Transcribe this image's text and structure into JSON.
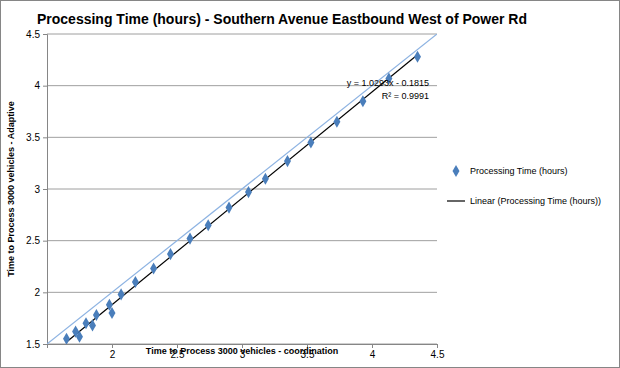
{
  "chart_data": {
    "type": "scatter",
    "title": "Processing Time (hours) - Southern Avenue Eastbound West of Power Rd",
    "x_label": "Time to Process 3000 vehicles - coordination",
    "y_label": "Time to Process 3000 vehicles - Adaptive",
    "xlim": [
      1.5,
      4.5
    ],
    "ylim": [
      1.5,
      4.5
    ],
    "xticks": [
      1.5,
      2,
      2.5,
      3,
      3.5,
      4,
      4.5
    ],
    "yticks": [
      1.5,
      2,
      2.5,
      3,
      3.5,
      4,
      4.5
    ],
    "grid": "y",
    "legend": "right",
    "series": [
      {
        "name": "Processing Time (hours)",
        "type": "scatter",
        "marker": "diamond",
        "color": "#4a7ebb",
        "x": [
          1.65,
          1.72,
          1.75,
          1.8,
          1.85,
          1.88,
          1.98,
          2.0,
          2.07,
          2.18,
          2.32,
          2.45,
          2.6,
          2.74,
          2.9,
          3.05,
          3.18,
          3.35,
          3.53,
          3.73,
          3.93,
          4.13,
          4.35
        ],
        "values": [
          1.55,
          1.62,
          1.57,
          1.7,
          1.68,
          1.78,
          1.88,
          1.8,
          1.98,
          2.1,
          2.23,
          2.37,
          2.52,
          2.65,
          2.82,
          2.97,
          3.1,
          3.27,
          3.45,
          3.65,
          3.85,
          4.07,
          4.28
        ]
      },
      {
        "name": "Linear (Processing Time (hours))",
        "type": "line",
        "line_style": "solid",
        "color": "#000000",
        "x": [
          1.65,
          4.35
        ],
        "values": [
          1.52,
          4.3
        ]
      },
      {
        "type": "line",
        "line_style": "solid",
        "color": "#8db3e2",
        "x": [
          1.5,
          4.5
        ],
        "values": [
          1.5,
          4.5
        ]
      }
    ],
    "annotations": [
      "y = 1.0293x - 0.1815",
      "R² = 0.9991"
    ]
  }
}
